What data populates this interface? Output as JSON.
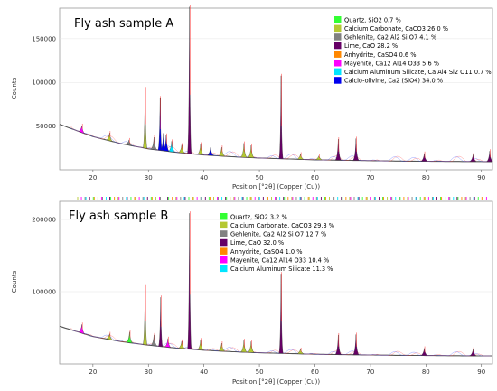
{
  "chart_data": [
    {
      "type": "line",
      "title": "Fly ash sample A",
      "xlabel": "Position [°2θ] (Copper (Cu))",
      "ylabel": "Counts",
      "xlim": [
        14,
        92
      ],
      "ylim": [
        0,
        185000
      ],
      "x_ticks": [
        20,
        30,
        40,
        50,
        60,
        70,
        80,
        90
      ],
      "y_ticks": [
        50000,
        100000,
        150000
      ],
      "y_tick_labels": [
        "50000",
        "100000",
        "150000"
      ],
      "legend_position": "top-right",
      "legend": [
        {
          "label": "Quartz, SiO2 0.7 %",
          "color": "#33ff33"
        },
        {
          "label": "Calcium Carbonate, CaCO3 26.0 %",
          "color": "#b5c832"
        },
        {
          "label": "Gehlenite, Ca2 Al2 Si O7 4.1 %",
          "color": "#808080"
        },
        {
          "label": "Lime, CaO 28.2 %",
          "color": "#660066"
        },
        {
          "label": "Anhydrite, CaSO4 0.6 %",
          "color": "#ff8800"
        },
        {
          "label": "Mayenite, Ca12 Al14 O33 5.6 %",
          "color": "#ff00ff"
        },
        {
          "label": "Calcium Aluminum Silicate, Ca Al4 Si2 O11 0.7 %",
          "color": "#00e5ff"
        },
        {
          "label": "Calcio-olivine, Ca2 (SiO4) 34.0 %",
          "color": "#0000ee"
        }
      ],
      "baseline": {
        "x": [
          14,
          20,
          25,
          30,
          35,
          40,
          45,
          50,
          55,
          60,
          65,
          70,
          75,
          80,
          85,
          92
        ],
        "y": [
          52000,
          38000,
          30000,
          24000,
          20000,
          17000,
          15000,
          13500,
          12500,
          11500,
          11000,
          10500,
          10000,
          9800,
          9600,
          9400
        ]
      },
      "peaks": [
        {
          "x": 18.0,
          "y": 8000,
          "phase": "Mayenite"
        },
        {
          "x": 23.0,
          "y": 9000,
          "phase": "Calcium Carbonate"
        },
        {
          "x": 26.5,
          "y": 6000,
          "phase": "Gehlenite"
        },
        {
          "x": 29.4,
          "y": 68000,
          "phase": "Calcium Carbonate"
        },
        {
          "x": 31.0,
          "y": 14000,
          "phase": "Gehlenite"
        },
        {
          "x": 32.1,
          "y": 60000,
          "phase": "Calcio-olivine"
        },
        {
          "x": 32.7,
          "y": 20000,
          "phase": "Calcio-olivine"
        },
        {
          "x": 33.2,
          "y": 18000,
          "phase": "Calcio-olivine"
        },
        {
          "x": 34.2,
          "y": 12000,
          "phase": "Calcium Aluminum Silicate"
        },
        {
          "x": 36.0,
          "y": 9000,
          "phase": "Calcium Carbonate"
        },
        {
          "x": 37.4,
          "y": 168000,
          "phase": "Lime"
        },
        {
          "x": 39.4,
          "y": 12000,
          "phase": "Calcium Carbonate"
        },
        {
          "x": 41.2,
          "y": 9000,
          "phase": "Calcio-olivine"
        },
        {
          "x": 43.2,
          "y": 10000,
          "phase": "Calcium Carbonate"
        },
        {
          "x": 47.2,
          "y": 16000,
          "phase": "Calcium Carbonate"
        },
        {
          "x": 48.5,
          "y": 14000,
          "phase": "Calcium Carbonate"
        },
        {
          "x": 53.9,
          "y": 95000,
          "phase": "Lime"
        },
        {
          "x": 57.4,
          "y": 6000,
          "phase": "Calcium Carbonate"
        },
        {
          "x": 60.7,
          "y": 4500,
          "phase": "Calcium Carbonate"
        },
        {
          "x": 64.2,
          "y": 24000,
          "phase": "Lime"
        },
        {
          "x": 67.4,
          "y": 25000,
          "phase": "Lime"
        },
        {
          "x": 79.7,
          "y": 9000,
          "phase": "Lime"
        },
        {
          "x": 88.5,
          "y": 8000,
          "phase": "Lime"
        },
        {
          "x": 91.5,
          "y": 12000,
          "phase": "Lime"
        }
      ]
    },
    {
      "type": "line",
      "title": "Fly ash sample B",
      "xlabel": "Position [°2θ] (Copper (Cu))",
      "ylabel": "Counts",
      "xlim": [
        14,
        92
      ],
      "ylim": [
        0,
        225000
      ],
      "x_ticks": [
        20,
        30,
        40,
        50,
        60,
        70,
        80,
        90
      ],
      "y_ticks": [
        100000,
        200000
      ],
      "y_tick_labels": [
        "100000",
        "200000"
      ],
      "legend_position": "top-center",
      "legend": [
        {
          "label": "Quartz, SiO2 3.2 %",
          "color": "#33ff33"
        },
        {
          "label": "Calcium Carbonate, CaCO3 29.3 %",
          "color": "#b5c832"
        },
        {
          "label": "Gehlenite, Ca2 Al2 Si O7 12.7 %",
          "color": "#808080"
        },
        {
          "label": "Lime, CaO 32.0 %",
          "color": "#660066"
        },
        {
          "label": "Anhydrite, CaSO4 1.0 %",
          "color": "#ff8800"
        },
        {
          "label": "Mayenite, Ca12 Al14 O33 10.4 %",
          "color": "#ff00ff"
        },
        {
          "label": "Calcium Aluminum Silicate 11.3 %",
          "color": "#00e5ff"
        }
      ],
      "baseline": {
        "x": [
          14,
          20,
          25,
          30,
          35,
          40,
          45,
          50,
          55,
          60,
          65,
          70,
          75,
          80,
          85,
          92
        ],
        "y": [
          52000,
          38000,
          31000,
          26000,
          22000,
          19000,
          17000,
          15500,
          14500,
          13500,
          13000,
          12500,
          12000,
          11800,
          11500,
          11200
        ]
      },
      "peaks": [
        {
          "x": 18.0,
          "y": 12000,
          "phase": "Mayenite"
        },
        {
          "x": 23.0,
          "y": 8000,
          "phase": "Calcium Carbonate"
        },
        {
          "x": 26.6,
          "y": 15000,
          "phase": "Quartz"
        },
        {
          "x": 29.4,
          "y": 80000,
          "phase": "Calcium Carbonate"
        },
        {
          "x": 31.0,
          "y": 15000,
          "phase": "Gehlenite"
        },
        {
          "x": 32.2,
          "y": 68000,
          "phase": "Lime"
        },
        {
          "x": 33.5,
          "y": 12000,
          "phase": "Mayenite"
        },
        {
          "x": 36.0,
          "y": 10000,
          "phase": "Calcium Carbonate"
        },
        {
          "x": 37.4,
          "y": 188000,
          "phase": "Lime"
        },
        {
          "x": 39.4,
          "y": 14000,
          "phase": "Calcium Carbonate"
        },
        {
          "x": 43.2,
          "y": 11000,
          "phase": "Calcium Carbonate"
        },
        {
          "x": 47.2,
          "y": 16000,
          "phase": "Calcium Carbonate"
        },
        {
          "x": 48.5,
          "y": 15000,
          "phase": "Calcium Carbonate"
        },
        {
          "x": 53.9,
          "y": 110000,
          "phase": "Lime"
        },
        {
          "x": 57.4,
          "y": 6000,
          "phase": "Calcium Carbonate"
        },
        {
          "x": 64.2,
          "y": 27000,
          "phase": "Lime"
        },
        {
          "x": 67.4,
          "y": 28000,
          "phase": "Lime"
        },
        {
          "x": 79.7,
          "y": 10000,
          "phase": "Lime"
        },
        {
          "x": 88.5,
          "y": 9000,
          "phase": "Lime"
        }
      ]
    }
  ]
}
